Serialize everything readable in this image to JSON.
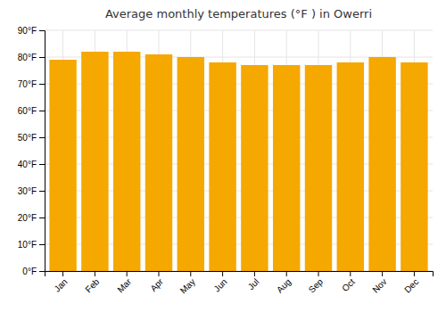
{
  "chart_data": {
    "type": "bar",
    "title": "Average monthly temperatures (°F ) in Owerri",
    "categories": [
      "Jan",
      "Feb",
      "Mar",
      "Apr",
      "May",
      "Jun",
      "Jul",
      "Aug",
      "Sep",
      "Oct",
      "Nov",
      "Dec"
    ],
    "values": [
      79,
      82,
      82,
      81,
      80,
      78,
      77,
      77,
      77,
      78,
      80,
      78
    ],
    "color": "#F5A800",
    "ylim": [
      0,
      90
    ],
    "yticks": [
      {
        "value": 0,
        "label": "0°F"
      },
      {
        "value": 10,
        "label": "10°F"
      },
      {
        "value": 20,
        "label": "20°F"
      },
      {
        "value": 30,
        "label": "30°F"
      },
      {
        "value": 40,
        "label": "40°F"
      },
      {
        "value": 50,
        "label": "50°F"
      },
      {
        "value": 60,
        "label": "60°F"
      },
      {
        "value": 70,
        "label": "70°F"
      },
      {
        "value": 80,
        "label": "80°F"
      },
      {
        "value": 90,
        "label": "90°F"
      }
    ],
    "grid": true
  }
}
